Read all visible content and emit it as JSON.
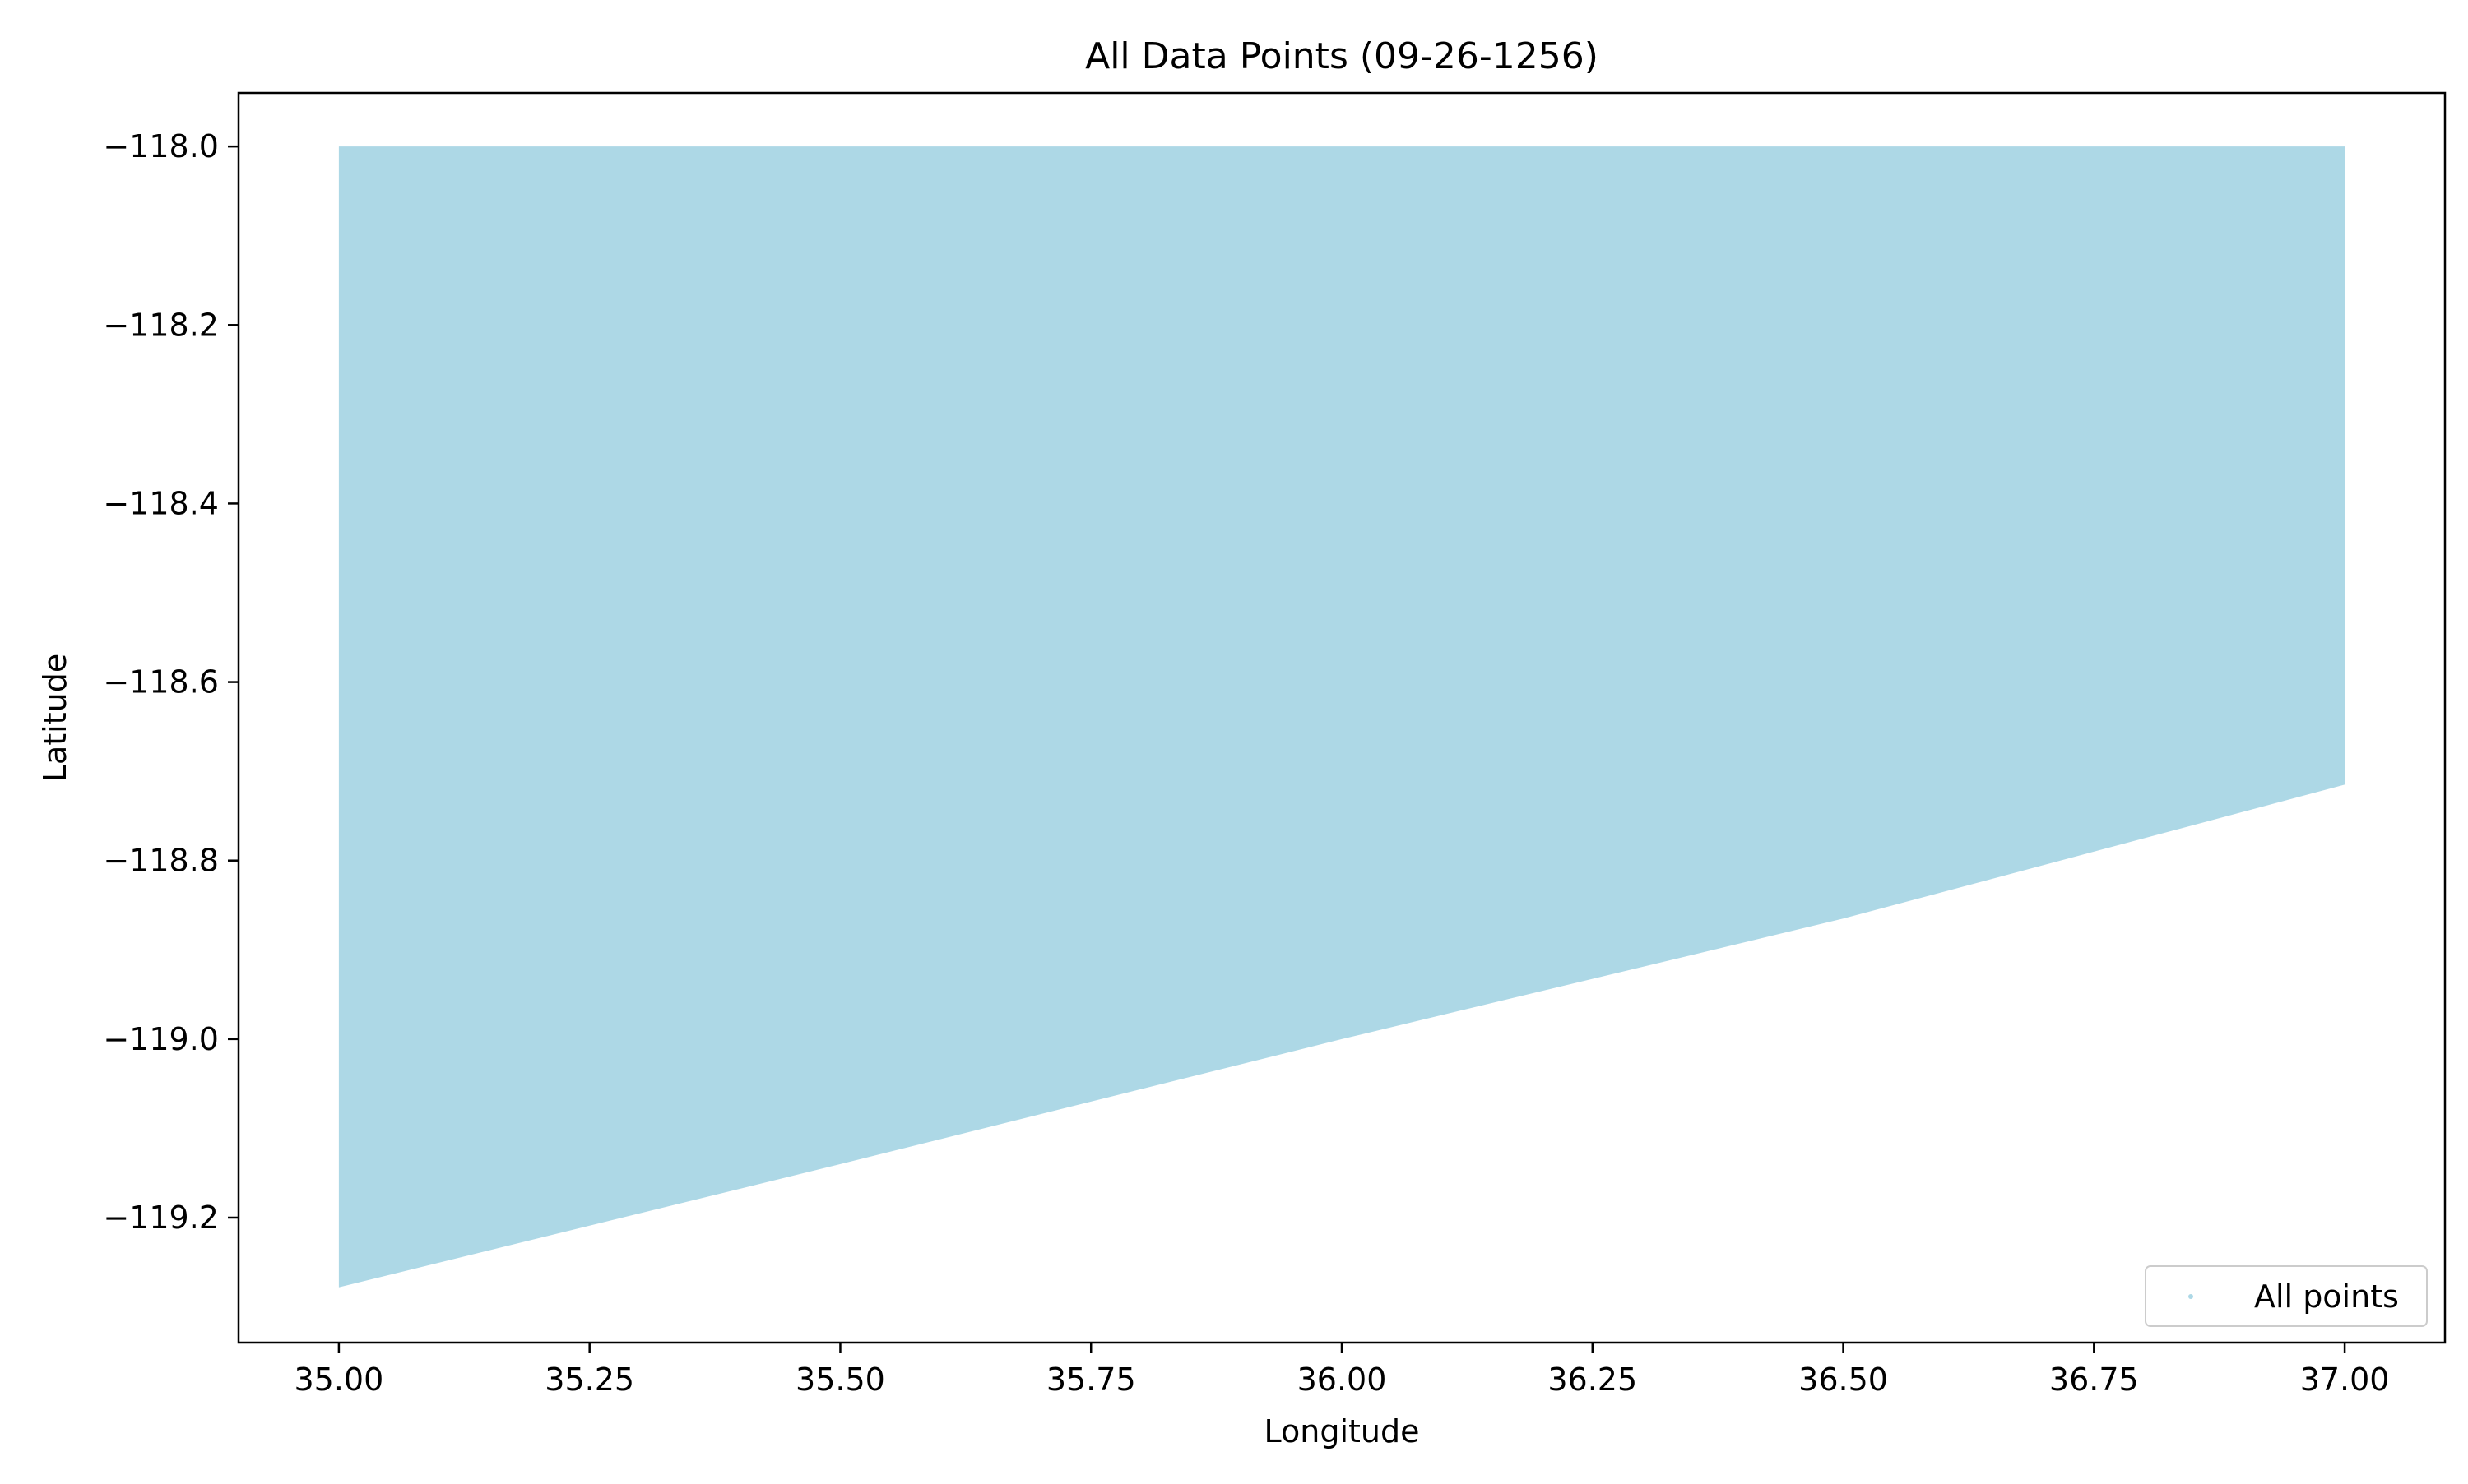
{
  "chart_data": {
    "type": "scatter",
    "title": "All Data Points (09-26-1256)",
    "xlabel": "Longitude",
    "ylabel": "Latitude",
    "xlim": [
      34.9,
      37.1
    ],
    "ylim": [
      -119.34,
      -117.94
    ],
    "x_ticks": [
      35.0,
      35.25,
      35.5,
      35.75,
      36.0,
      36.25,
      36.5,
      36.75,
      37.0
    ],
    "x_tick_labels": [
      "35.00",
      "35.25",
      "35.50",
      "35.75",
      "36.00",
      "36.25",
      "36.50",
      "36.75",
      "37.00"
    ],
    "y_ticks": [
      -118.0,
      -118.2,
      -118.4,
      -118.6,
      -118.8,
      -119.0,
      -119.2
    ],
    "y_tick_labels": [
      "−118.0",
      "−118.2",
      "−118.4",
      "−118.6",
      "−118.8",
      "−119.0",
      "−119.2"
    ],
    "grid": false,
    "legend_position": "lower-right",
    "series": [
      {
        "name": "All points",
        "color": "#add8e6",
        "region_outline": [
          {
            "x": 35.0,
            "y": -118.0
          },
          {
            "x": 37.0,
            "y": -118.0
          },
          {
            "x": 37.0,
            "y": -118.715
          },
          {
            "x": 36.9,
            "y": -118.745
          },
          {
            "x": 36.5,
            "y": -118.865
          },
          {
            "x": 36.0,
            "y": -119.0
          },
          {
            "x": 35.5,
            "y": -119.14
          },
          {
            "x": 35.0,
            "y": -119.278
          }
        ]
      }
    ]
  }
}
